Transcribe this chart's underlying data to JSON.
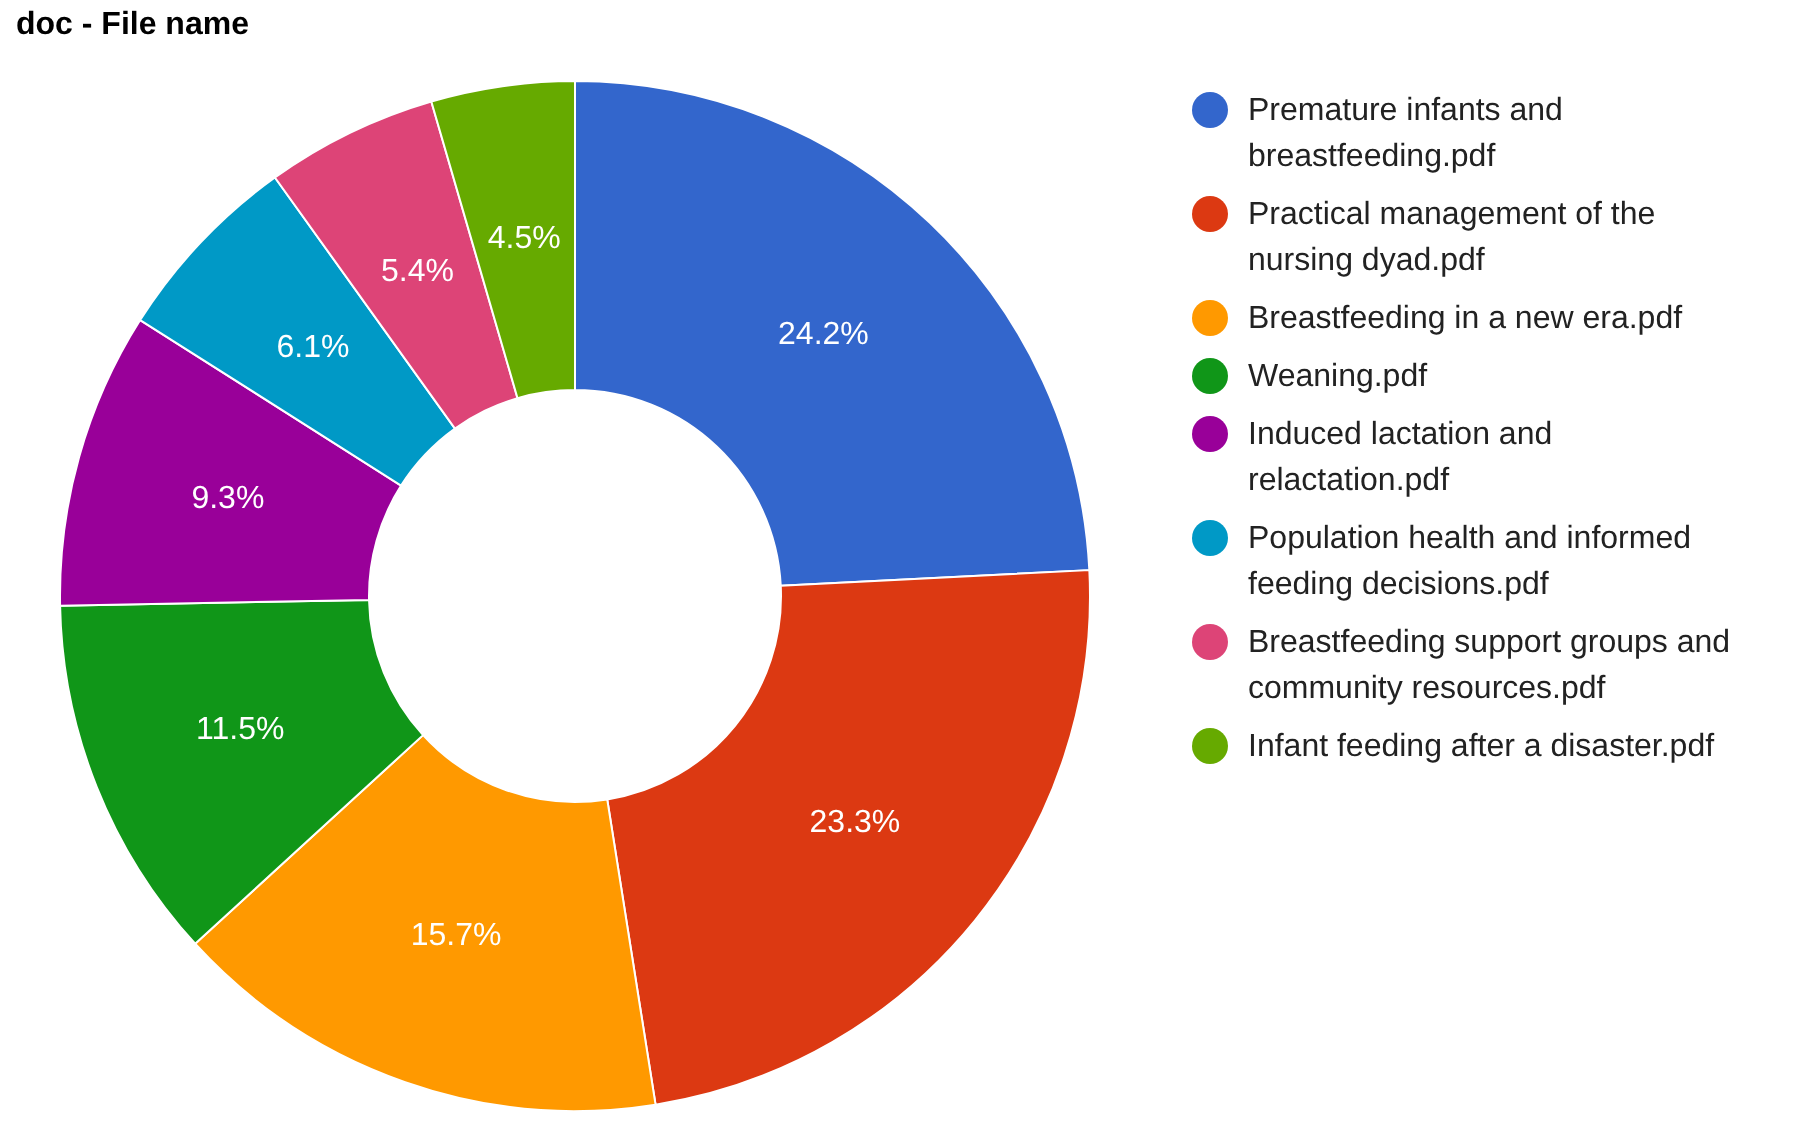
{
  "chart_data": {
    "type": "donut",
    "title": "doc - File name",
    "categories": [
      "Premature infants and breastfeeding.pdf",
      "Practical management of the nursing dyad.pdf",
      "Breastfeeding in a new era.pdf",
      "Weaning.pdf",
      "Induced lactation and relactation.pdf",
      "Population health and informed feeding decisions.pdf",
      "Breastfeeding support groups and community resources.pdf",
      "Infant feeding after a disaster.pdf"
    ],
    "values": [
      24.2,
      23.3,
      15.7,
      11.5,
      9.3,
      6.1,
      5.4,
      4.5
    ],
    "colors": [
      "#3366cc",
      "#dc3912",
      "#ff9900",
      "#109618",
      "#990099",
      "#0099c6",
      "#dd4477",
      "#66aa00"
    ],
    "value_labels": [
      "24.2%",
      "23.3%",
      "15.7%",
      "11.5%",
      "9.3%",
      "6.1%",
      "5.4%",
      "4.5%"
    ],
    "legend": "right"
  }
}
